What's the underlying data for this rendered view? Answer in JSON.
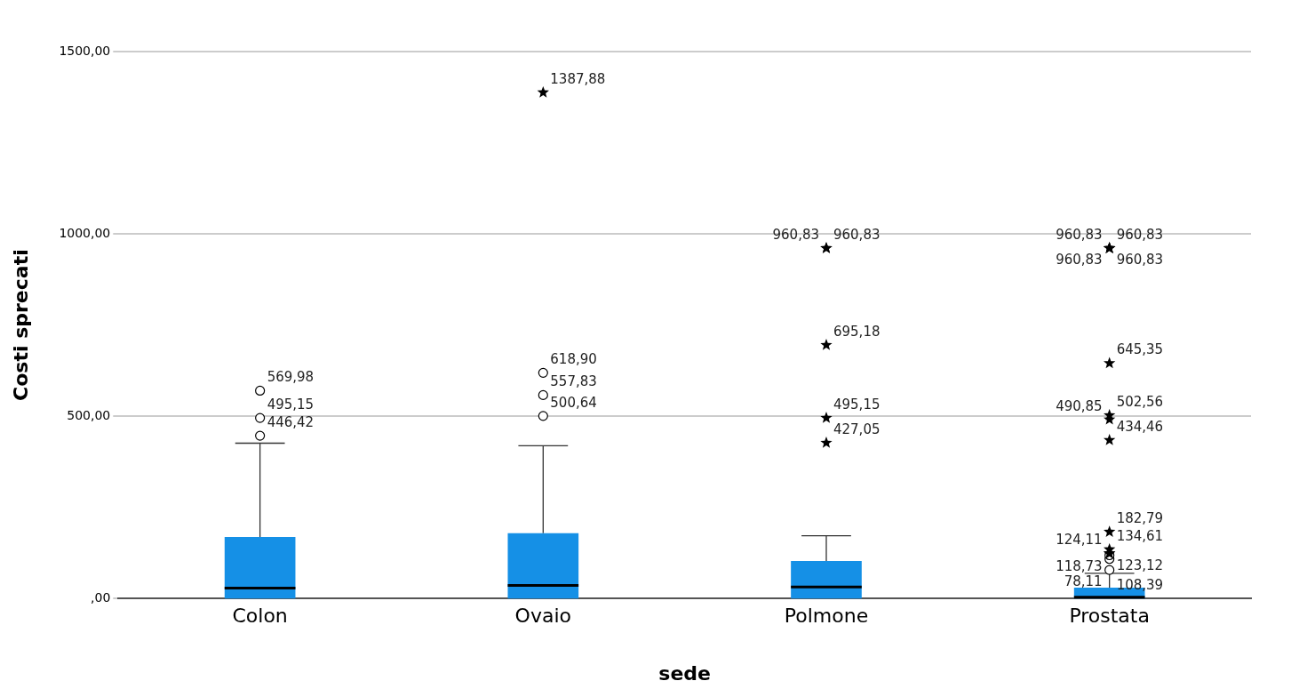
{
  "chart_data": {
    "type": "box",
    "xlabel": "sede",
    "ylabel": "Costi sprecati",
    "categories": [
      "Colon",
      "Ovaio",
      "Polmone",
      "Prostata"
    ],
    "color": "#1590e6",
    "grid": "y",
    "legend": false,
    "ylim": [
      0,
      1500
    ],
    "yticks": [
      {
        "value": 0,
        "label": ",00"
      },
      {
        "value": 500,
        "label": "500,00"
      },
      {
        "value": 1000,
        "label": "1000,00"
      },
      {
        "value": 1500,
        "label": "1500,00"
      }
    ],
    "boxes": [
      {
        "q1": 0,
        "median": 25,
        "q3": 169,
        "high": 426
      },
      {
        "q1": 0,
        "median": 32,
        "q3": 179,
        "high": 419
      },
      {
        "q1": 0,
        "median": 28,
        "q3": 103,
        "high": 172
      },
      {
        "q1": 0,
        "median": 0,
        "q3": 30,
        "high": 69
      }
    ],
    "series": [
      {
        "type": "scatter",
        "marker": "circle",
        "color": "#000000",
        "x": [
          "Colon",
          "Colon",
          "Colon",
          "Ovaio",
          "Ovaio",
          "Ovaio",
          "Prostata",
          "Prostata",
          "Prostata"
        ],
        "values": [
          446.42,
          495.15,
          569.98,
          500.64,
          557.83,
          618.9,
          78.11,
          108.39,
          118.73
        ],
        "value_labels": [
          "446,42",
          "495,15",
          "569,98",
          "500,64",
          "557,83",
          "618,90",
          "78,11",
          "108,39",
          "118,73"
        ]
      },
      {
        "type": "scatter",
        "marker": "star",
        "color": "#000000",
        "x": [
          "Ovaio",
          "Polmone",
          "Polmone",
          "Polmone",
          "Polmone",
          "Polmone",
          "Prostata",
          "Prostata",
          "Prostata",
          "Prostata",
          "Prostata",
          "Prostata",
          "Prostata",
          "Prostata",
          "Prostata",
          "Prostata",
          "Prostata",
          "Prostata"
        ],
        "values": [
          1387.88,
          427.05,
          495.15,
          695.18,
          960.83,
          960.83,
          123.12,
          124.11,
          134.61,
          182.79,
          434.46,
          490.85,
          502.56,
          645.35,
          960.83,
          960.83,
          960.83,
          960.83
        ],
        "value_labels": [
          "1387,88",
          "427,05",
          "495,15",
          "695,18",
          "960,83",
          "960,83",
          "123,12",
          "124,11",
          "134,61",
          "182,79",
          "434,46",
          "490,85",
          "502,56",
          "645,35",
          "960,83",
          "960,83",
          "960,83",
          "960,83"
        ]
      }
    ]
  }
}
